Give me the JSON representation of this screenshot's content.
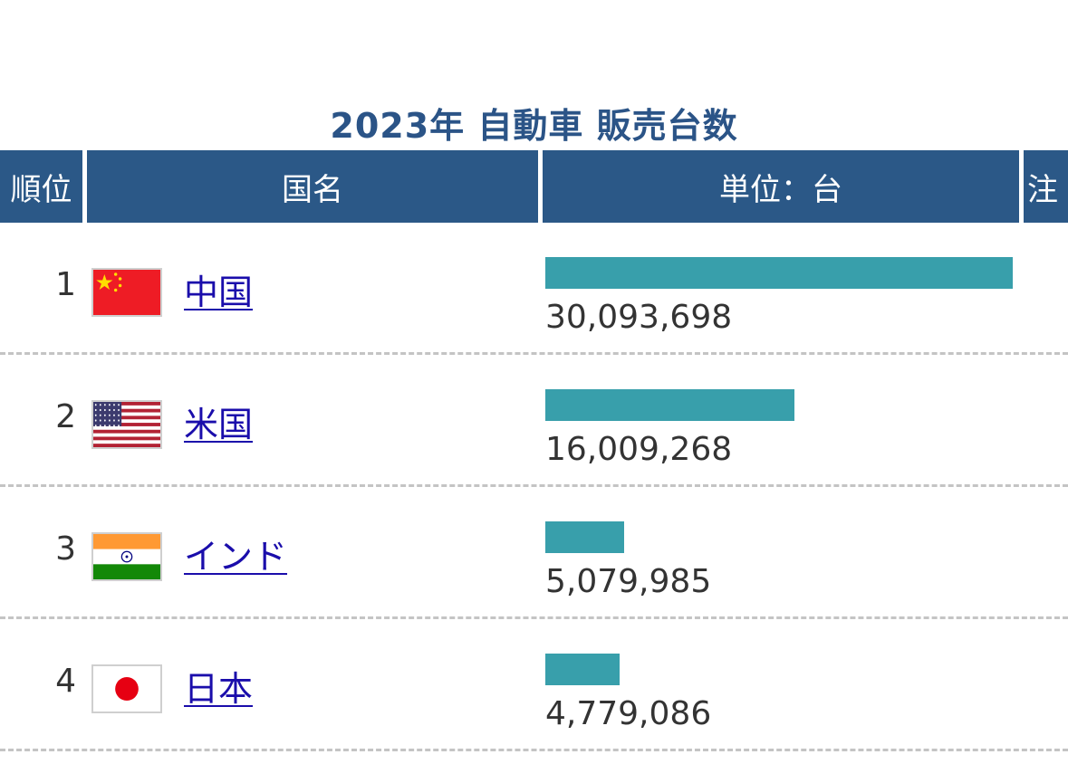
{
  "chart_data": {
    "type": "bar",
    "title": "2023年 自動車 販売台数",
    "headers": {
      "rank": "順位",
      "country": "国名",
      "unit": "単位：台",
      "note": "注"
    },
    "categories": [
      "中国",
      "米国",
      "インド",
      "日本"
    ],
    "values": [
      30093698,
      16009268,
      5079985,
      4779086
    ],
    "value_labels": [
      "30,093,698",
      "16,009,268",
      "5,079,985",
      "4,779,086"
    ],
    "ranks": [
      "1",
      "2",
      "3",
      "4"
    ],
    "flag_icons": [
      "china-flag-icon",
      "usa-flag-icon",
      "india-flag-icon",
      "japan-flag-icon"
    ],
    "bar_color": "#389fab",
    "header_color": "#2b5887",
    "title_color": "#2b5487",
    "link_color": "#1a0dab"
  }
}
